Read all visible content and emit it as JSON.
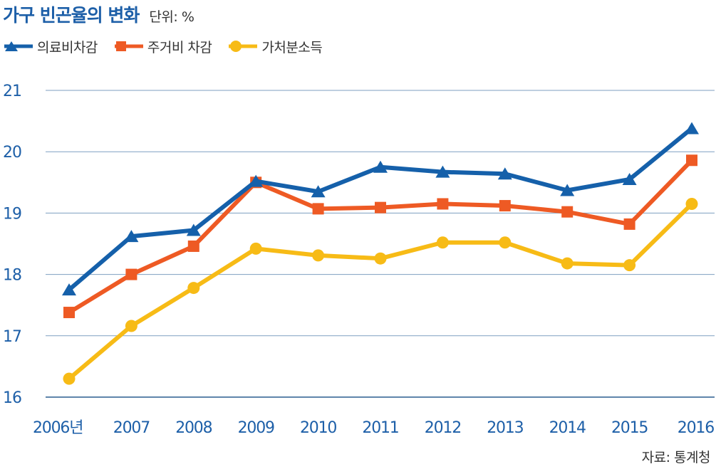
{
  "header": {
    "title": "가구 빈곤율의 변화",
    "unit": "단위: %"
  },
  "source": "자료: 통계청",
  "chart_data": {
    "type": "line",
    "title": "가구 빈곤율의 변화",
    "ylabel": "",
    "xlabel": "",
    "categories": [
      "2006년",
      "2007",
      "2008",
      "2009",
      "2010",
      "2011",
      "2012",
      "2013",
      "2014",
      "2015",
      "2016"
    ],
    "yticks": [
      "16",
      "17",
      "18",
      "19",
      "20",
      "21"
    ],
    "ylim": [
      16,
      21
    ],
    "grid": true,
    "legend_position": "top-left",
    "series": [
      {
        "name": "의료비차감",
        "color": "#1560aa",
        "marker": "triangle",
        "values": [
          17.75,
          18.62,
          18.72,
          19.52,
          19.35,
          19.75,
          19.67,
          19.64,
          19.37,
          19.55,
          20.38
        ]
      },
      {
        "name": "주거비 차감",
        "color": "#ee5a24",
        "marker": "square",
        "values": [
          17.38,
          18.0,
          18.46,
          19.5,
          19.07,
          19.09,
          19.15,
          19.12,
          19.02,
          18.82,
          19.86
        ]
      },
      {
        "name": "가처분소득",
        "color": "#f7bb16",
        "marker": "circle",
        "values": [
          16.3,
          17.16,
          17.78,
          18.42,
          18.31,
          18.26,
          18.52,
          18.52,
          18.18,
          18.15,
          19.15
        ]
      }
    ]
  }
}
